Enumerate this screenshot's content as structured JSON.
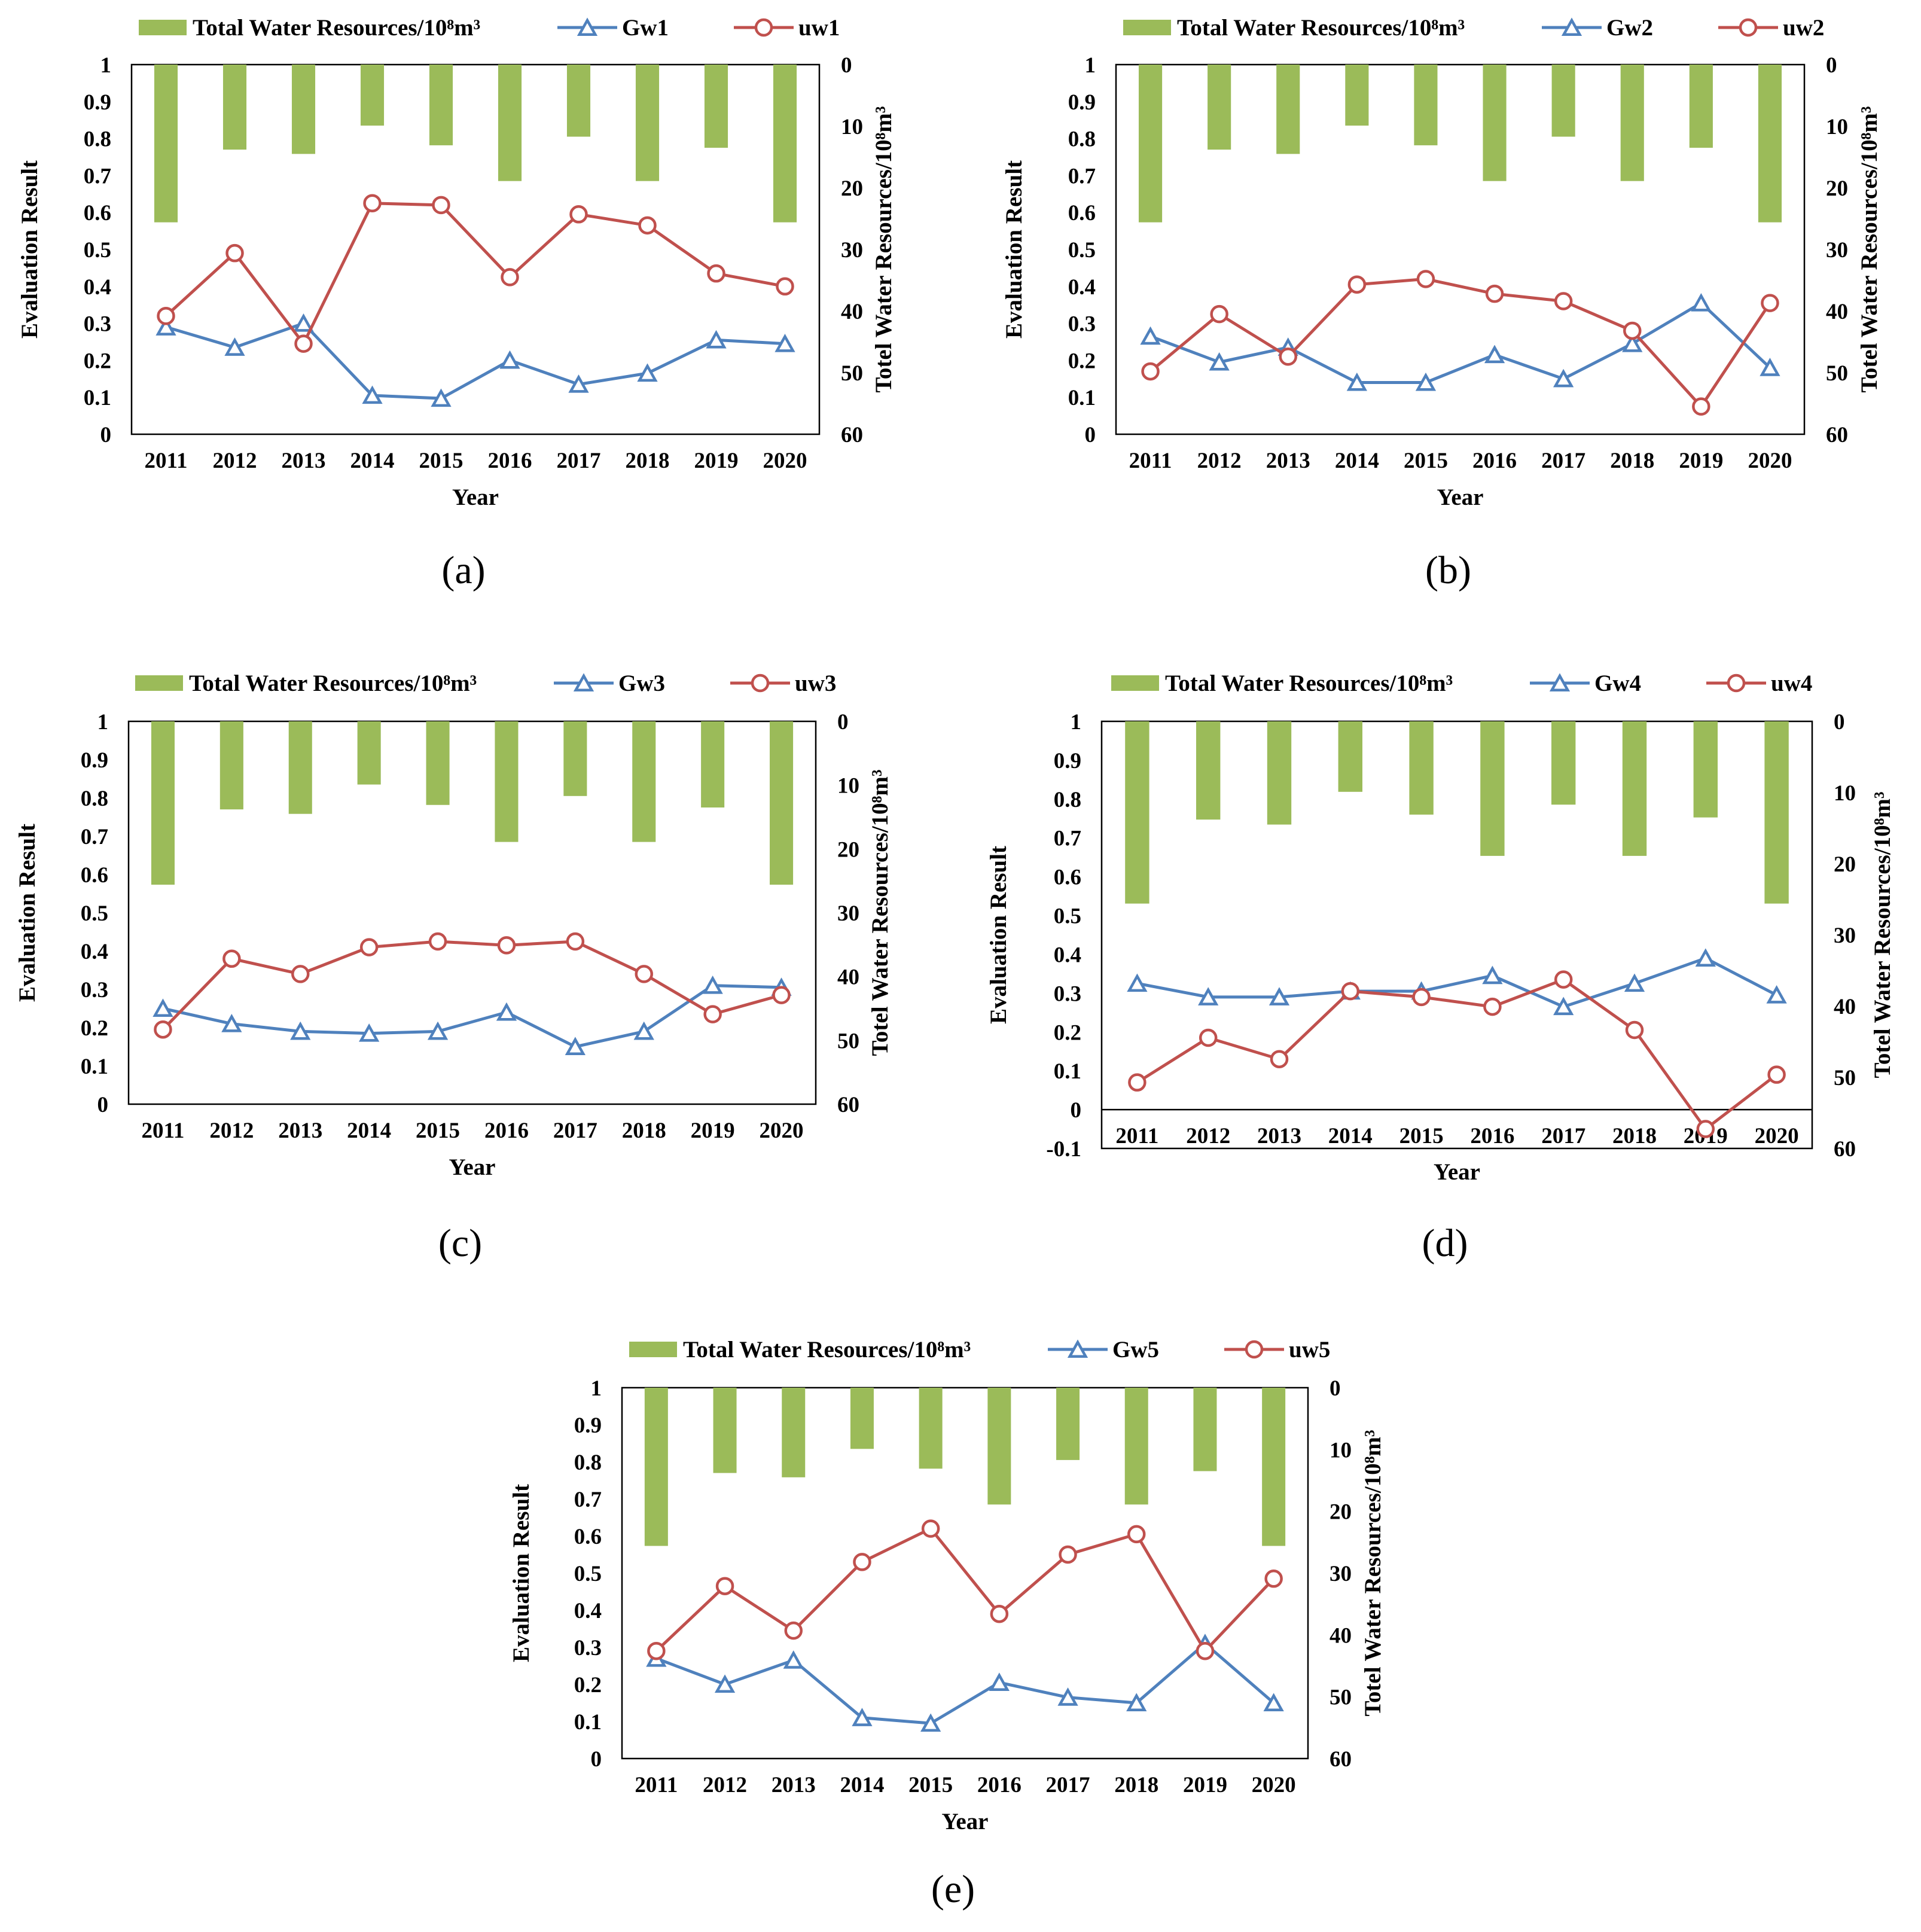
{
  "figure": {
    "panel_letters": [
      "(a)",
      "(b)",
      "(c)",
      "(d)",
      "(e)"
    ]
  },
  "colors": {
    "bar": "#9bbb59",
    "gw": "#4f81bd",
    "uw": "#c0504d",
    "axis": "#000000"
  },
  "chart_data": [
    {
      "type": "bar+line",
      "panel": "(a)",
      "legend": {
        "bar": "Total Water Resources/10⁸m³",
        "gw": "Gw1",
        "uw": "uw1"
      },
      "xlabel": "Year",
      "ylabel": "Evaluation Result",
      "y2label": "Totel Water Resources/10⁸m³",
      "categories": [
        "2011",
        "2012",
        "2013",
        "2014",
        "2015",
        "2016",
        "2017",
        "2018",
        "2019",
        "2020"
      ],
      "ylim": [
        0,
        1
      ],
      "yticks": [
        "0",
        "0.1",
        "0.2",
        "0.3",
        "0.4",
        "0.5",
        "0.6",
        "0.7",
        "0.8",
        "0.9",
        "1"
      ],
      "y2lim": [
        0,
        60
      ],
      "y2ticks": [
        "0",
        "10",
        "20",
        "30",
        "40",
        "50",
        "60"
      ],
      "y2_inverted": true,
      "bars": [
        25.6,
        13.8,
        14.5,
        9.9,
        13.1,
        18.9,
        11.7,
        18.9,
        13.5,
        25.6
      ],
      "series": [
        {
          "name": "Gw1",
          "values": [
            0.29,
            0.235,
            0.3,
            0.105,
            0.097,
            0.2,
            0.135,
            0.165,
            0.255,
            0.245
          ]
        },
        {
          "name": "uw1",
          "values": [
            0.32,
            0.49,
            0.245,
            0.625,
            0.62,
            0.425,
            0.595,
            0.565,
            0.435,
            0.4
          ]
        }
      ]
    },
    {
      "type": "bar+line",
      "panel": "(b)",
      "legend": {
        "bar": "Total Water Resources/10⁸m³",
        "gw": "Gw2",
        "uw": "uw2"
      },
      "xlabel": "Year",
      "ylabel": "Evaluation Result",
      "y2label": "Totel Water Resources/10⁸m³",
      "categories": [
        "2011",
        "2012",
        "2013",
        "2014",
        "2015",
        "2016",
        "2017",
        "2018",
        "2019",
        "2020"
      ],
      "ylim": [
        0,
        1
      ],
      "yticks": [
        "0",
        "0.1",
        "0.2",
        "0.3",
        "0.4",
        "0.5",
        "0.6",
        "0.7",
        "0.8",
        "0.9",
        "1"
      ],
      "y2lim": [
        0,
        60
      ],
      "y2ticks": [
        "0",
        "10",
        "20",
        "30",
        "40",
        "50",
        "60"
      ],
      "y2_inverted": true,
      "bars": [
        25.6,
        13.8,
        14.5,
        9.9,
        13.1,
        18.9,
        11.7,
        18.9,
        13.5,
        25.6
      ],
      "series": [
        {
          "name": "Gw2",
          "values": [
            0.265,
            0.195,
            0.235,
            0.14,
            0.14,
            0.215,
            0.15,
            0.245,
            0.355,
            0.18
          ]
        },
        {
          "name": "uw2",
          "values": [
            0.17,
            0.325,
            0.21,
            0.405,
            0.42,
            0.38,
            0.36,
            0.28,
            0.075,
            0.355
          ]
        }
      ]
    },
    {
      "type": "bar+line",
      "panel": "(c)",
      "legend": {
        "bar": "Total Water Resources/10⁸m³",
        "gw": "Gw3",
        "uw": "uw3"
      },
      "xlabel": "Year",
      "ylabel": "Evaluation Result",
      "y2label": "Totel Water Resources/10⁸m³",
      "categories": [
        "2011",
        "2012",
        "2013",
        "2014",
        "2015",
        "2016",
        "2017",
        "2018",
        "2019",
        "2020"
      ],
      "ylim": [
        0,
        1
      ],
      "yticks": [
        "0",
        "0.1",
        "0.2",
        "0.3",
        "0.4",
        "0.5",
        "0.6",
        "0.7",
        "0.8",
        "0.9",
        "1"
      ],
      "y2lim": [
        0,
        60
      ],
      "y2ticks": [
        "0",
        "10",
        "20",
        "30",
        "40",
        "50",
        "60"
      ],
      "y2_inverted": true,
      "bars": [
        25.6,
        13.8,
        14.5,
        9.9,
        13.1,
        18.9,
        11.7,
        18.9,
        13.5,
        25.6
      ],
      "series": [
        {
          "name": "Gw3",
          "values": [
            0.25,
            0.21,
            0.19,
            0.185,
            0.19,
            0.24,
            0.15,
            0.19,
            0.31,
            0.305
          ]
        },
        {
          "name": "uw3",
          "values": [
            0.195,
            0.38,
            0.34,
            0.41,
            0.425,
            0.415,
            0.425,
            0.34,
            0.235,
            0.285
          ]
        }
      ]
    },
    {
      "type": "bar+line",
      "panel": "(d)",
      "legend": {
        "bar": "Total Water Resources/10⁸m³",
        "gw": "Gw4",
        "uw": "uw4"
      },
      "xlabel": "Year",
      "ylabel": "Evaluation Result",
      "y2label": "Totel Water Resources/10⁸m³",
      "categories": [
        "2011",
        "2012",
        "2013",
        "2014",
        "2015",
        "2016",
        "2017",
        "2018",
        "2019",
        "2020"
      ],
      "ylim": [
        -0.1,
        1
      ],
      "yticks": [
        "-0.1",
        "0",
        "0.1",
        "0.2",
        "0.3",
        "0.4",
        "0.5",
        "0.6",
        "0.7",
        "0.8",
        "0.9",
        "1"
      ],
      "y2lim": [
        0,
        60
      ],
      "y2ticks": [
        "0",
        "10",
        "20",
        "30",
        "40",
        "50",
        "60"
      ],
      "y2_inverted": true,
      "bars": [
        25.6,
        13.8,
        14.5,
        9.9,
        13.1,
        18.9,
        11.7,
        18.9,
        13.5,
        25.6
      ],
      "series": [
        {
          "name": "Gw4",
          "values": [
            0.325,
            0.29,
            0.29,
            0.305,
            0.305,
            0.345,
            0.265,
            0.325,
            0.39,
            0.295
          ]
        },
        {
          "name": "uw4",
          "values": [
            0.07,
            0.185,
            0.13,
            0.305,
            0.29,
            0.265,
            0.335,
            0.205,
            -0.05,
            0.09
          ]
        }
      ]
    },
    {
      "type": "bar+line",
      "panel": "(e)",
      "legend": {
        "bar": "Total Water Resources/10⁸m³",
        "gw": "Gw5",
        "uw": "uw5"
      },
      "xlabel": "Year",
      "ylabel": "Evaluation Result",
      "y2label": "Totel Water Resources/10⁸m³",
      "categories": [
        "2011",
        "2012",
        "2013",
        "2014",
        "2015",
        "2016",
        "2017",
        "2018",
        "2019",
        "2020"
      ],
      "ylim": [
        0,
        1
      ],
      "yticks": [
        "0",
        "0.1",
        "0.2",
        "0.3",
        "0.4",
        "0.5",
        "0.6",
        "0.7",
        "0.8",
        "0.9",
        "1"
      ],
      "y2lim": [
        0,
        60
      ],
      "y2ticks": [
        "0",
        "10",
        "20",
        "30",
        "40",
        "50",
        "60"
      ],
      "y2_inverted": true,
      "bars": [
        25.6,
        13.8,
        14.5,
        9.9,
        13.1,
        18.9,
        11.7,
        18.9,
        13.5,
        25.6
      ],
      "series": [
        {
          "name": "Gw5",
          "values": [
            0.27,
            0.2,
            0.265,
            0.11,
            0.095,
            0.205,
            0.165,
            0.15,
            0.31,
            0.15
          ]
        },
        {
          "name": "uw5",
          "values": [
            0.29,
            0.465,
            0.345,
            0.53,
            0.62,
            0.39,
            0.55,
            0.605,
            0.29,
            0.485
          ]
        }
      ]
    }
  ]
}
